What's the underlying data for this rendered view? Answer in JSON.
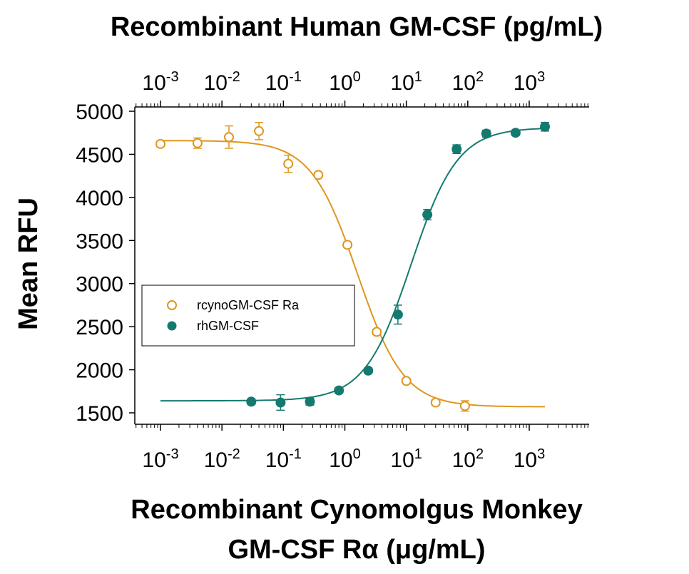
{
  "chart_data": {
    "type": "scatter",
    "top_xlabel": "Recombinant Human GM-CSF (pg/mL)",
    "xlabel_line1": "Recombinant Cynomolgus Monkey",
    "xlabel_line2": "GM-CSF Rα (μg/mL)",
    "ylabel": "Mean RFU",
    "x_scale": "log",
    "xlim": [
      0.0005,
      8000
    ],
    "ylim": [
      1400,
      5000
    ],
    "x_tick_values": [
      0.001,
      0.01,
      0.1,
      1,
      10,
      100,
      1000
    ],
    "x_tick_labels": [
      {
        "base": "10",
        "exp": "-3"
      },
      {
        "base": "10",
        "exp": "-2"
      },
      {
        "base": "10",
        "exp": "-1"
      },
      {
        "base": "10",
        "exp": "0"
      },
      {
        "base": "10",
        "exp": "1"
      },
      {
        "base": "10",
        "exp": "2"
      },
      {
        "base": "10",
        "exp": "3"
      }
    ],
    "y_ticks": [
      1500,
      2000,
      2500,
      3000,
      3500,
      4000,
      4500,
      5000
    ],
    "y_tick_labels": [
      "1500",
      "2000",
      "2500",
      "3000",
      "3500",
      "4000",
      "4500",
      "5000"
    ],
    "grid": false,
    "legend_position": "center-left",
    "series": [
      {
        "name": "rcynoGM-CSF Ra",
        "marker": "open-circle",
        "color": "#E0961E",
        "x": [
          0.001,
          0.004,
          0.013,
          0.04,
          0.12,
          0.37,
          1.1,
          3.3,
          10,
          30,
          90
        ],
        "y": [
          4620,
          4630,
          4700,
          4770,
          4390,
          4260,
          3450,
          2440,
          1870,
          1620,
          1580
        ],
        "err": [
          30,
          60,
          130,
          100,
          100,
          30,
          30,
          30,
          30,
          30,
          60
        ],
        "fit": {
          "bottom": 1570,
          "top": 4660,
          "ec50": 1.6,
          "hill": -1.15,
          "x_range": [
            0.001,
            1800
          ]
        }
      },
      {
        "name": "rhGM-CSF",
        "marker": "filled-circle",
        "color": "#147A70",
        "x": [
          0.03,
          0.09,
          0.27,
          0.8,
          2.4,
          7.3,
          22,
          66,
          200,
          600,
          1800
        ],
        "y": [
          1630,
          1620,
          1630,
          1760,
          1990,
          2640,
          3800,
          4560,
          4740,
          4750,
          4820
        ],
        "err": [
          30,
          90,
          40,
          30,
          30,
          110,
          60,
          50,
          40,
          30,
          50
        ],
        "fit": {
          "bottom": 1640,
          "top": 4810,
          "ec50": 12,
          "hill": 1.15,
          "x_range": [
            0.001,
            1800
          ]
        }
      }
    ]
  }
}
